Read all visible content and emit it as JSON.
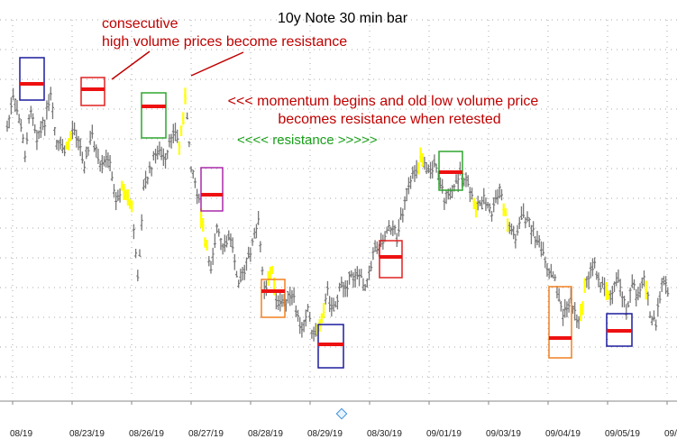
{
  "chart_data": {
    "type": "candlestick",
    "title": "10y Note 30 min bar",
    "xlabel": "",
    "ylabel": "",
    "grid": true,
    "ylim": [
      0,
      100
    ],
    "x_tick_labels": [
      "08/19",
      "08/23/19",
      "08/26/19",
      "08/27/19",
      "08/28/19",
      "08/29/19",
      "08/30/19",
      "09/01/19",
      "09/03/19",
      "09/04/19",
      "09/05/19",
      "09/..."
    ],
    "price_path": [
      [
        0,
        28
      ],
      [
        3,
        20
      ],
      [
        6,
        25
      ],
      [
        9,
        35
      ],
      [
        12,
        22
      ],
      [
        15,
        30
      ],
      [
        18,
        28
      ],
      [
        22,
        20
      ],
      [
        25,
        33
      ],
      [
        30,
        34
      ],
      [
        34,
        27
      ],
      [
        39,
        38
      ],
      [
        43,
        30
      ],
      [
        47,
        40
      ],
      [
        51,
        36
      ],
      [
        55,
        48
      ],
      [
        59,
        44
      ],
      [
        63,
        50
      ],
      [
        66,
        70
      ],
      [
        69,
        45
      ],
      [
        72,
        40
      ],
      [
        76,
        34
      ],
      [
        80,
        38
      ],
      [
        84,
        28
      ],
      [
        87,
        33
      ],
      [
        90,
        20
      ],
      [
        93,
        38
      ],
      [
        96,
        45
      ],
      [
        100,
        60
      ],
      [
        103,
        66
      ],
      [
        106,
        56
      ],
      [
        109,
        62
      ],
      [
        113,
        58
      ],
      [
        117,
        70
      ],
      [
        120,
        68
      ],
      [
        123,
        62
      ],
      [
        127,
        55
      ],
      [
        130,
        72
      ],
      [
        134,
        68
      ],
      [
        137,
        78
      ],
      [
        141,
        75
      ],
      [
        145,
        76
      ],
      [
        148,
        84
      ],
      [
        152,
        78
      ],
      [
        155,
        86
      ],
      [
        159,
        80
      ],
      [
        162,
        74
      ],
      [
        165,
        78
      ],
      [
        169,
        72
      ],
      [
        173,
        70
      ],
      [
        177,
        68
      ],
      [
        181,
        72
      ],
      [
        185,
        62
      ],
      [
        189,
        60
      ],
      [
        193,
        55
      ],
      [
        197,
        58
      ],
      [
        201,
        48
      ],
      [
        205,
        42
      ],
      [
        209,
        36
      ],
      [
        213,
        40
      ],
      [
        217,
        38
      ],
      [
        221,
        48
      ],
      [
        225,
        46
      ],
      [
        229,
        40
      ],
      [
        233,
        44
      ],
      [
        237,
        50
      ],
      [
        241,
        48
      ],
      [
        245,
        52
      ],
      [
        249,
        45
      ],
      [
        253,
        55
      ],
      [
        257,
        58
      ],
      [
        261,
        52
      ],
      [
        265,
        56
      ],
      [
        269,
        60
      ],
      [
        273,
        68
      ],
      [
        277,
        70
      ],
      [
        281,
        80
      ],
      [
        285,
        76
      ],
      [
        289,
        82
      ],
      [
        293,
        70
      ],
      [
        297,
        66
      ],
      [
        301,
        72
      ],
      [
        305,
        74
      ],
      [
        309,
        70
      ],
      [
        313,
        78
      ],
      [
        316,
        72
      ],
      [
        319,
        75
      ],
      [
        322,
        68
      ],
      [
        325,
        80
      ],
      [
        328,
        83
      ],
      [
        331,
        70
      ],
      [
        334,
        74
      ]
    ],
    "volume_price_marks": [
      {
        "color": "#1c1c9e",
        "price": 28
      },
      {
        "color": "#e02020",
        "price": 32
      },
      {
        "color": "#2fa52f",
        "price": 36
      },
      {
        "color": "#aa2aaa",
        "price": 58
      },
      {
        "color": "#f08020",
        "price": 76
      },
      {
        "color": "#1c1c9e",
        "price": 86
      },
      {
        "color": "#e02020",
        "price": 67
      },
      {
        "color": "#2fa52f",
        "price": 57
      },
      {
        "color": "#f08020",
        "price": 85
      },
      {
        "color": "#1c1c9e",
        "price": 81
      }
    ],
    "annotations": {
      "consecutive_line1": "consecutive",
      "consecutive_line2": "high volume prices become resistance",
      "momentum_line1": "<<< momentum begins and old low volume price",
      "momentum_line2": "becomes resistance when retested",
      "resistance": "<<<< resistance >>>>>"
    }
  },
  "colors": {
    "bars": "#777777",
    "momentum": "#ffff00",
    "poc_line": "#ee1111",
    "annotation_red": "#c00000",
    "annotation_green": "#1aa01a",
    "grid": "#aaaaaa"
  },
  "icons": {
    "scroll_marker": "diamond-icon"
  }
}
